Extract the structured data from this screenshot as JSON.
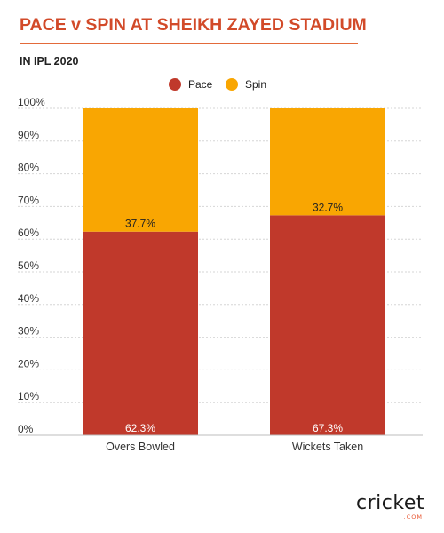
{
  "header": {
    "title": "PACE v SPIN AT SHEIKH ZAYED STADIUM",
    "subtitle": "IN IPL 2020"
  },
  "legend": {
    "items": [
      {
        "label": "Pace",
        "color": "#c0392b"
      },
      {
        "label": "Spin",
        "color": "#f9a602"
      }
    ]
  },
  "chart_data": {
    "type": "bar",
    "stacked": true,
    "categories": [
      "Overs Bowled",
      "Wickets Taken"
    ],
    "series": [
      {
        "name": "Pace",
        "values": [
          62.3,
          67.3
        ],
        "labels": [
          "62.3%",
          "67.3%"
        ],
        "color": "#c0392b"
      },
      {
        "name": "Spin",
        "values": [
          37.7,
          32.7
        ],
        "labels": [
          "37.7%",
          "32.7%"
        ],
        "color": "#f9a602"
      }
    ],
    "y_ticks": [
      "0%",
      "10%",
      "20%",
      "30%",
      "40%",
      "50%",
      "60%",
      "70%",
      "80%",
      "90%",
      "100%"
    ],
    "ylim": [
      0,
      100
    ],
    "grid": true,
    "legend_position": "top-center"
  },
  "logo": {
    "main": "cricket",
    "sub": ".COM"
  }
}
